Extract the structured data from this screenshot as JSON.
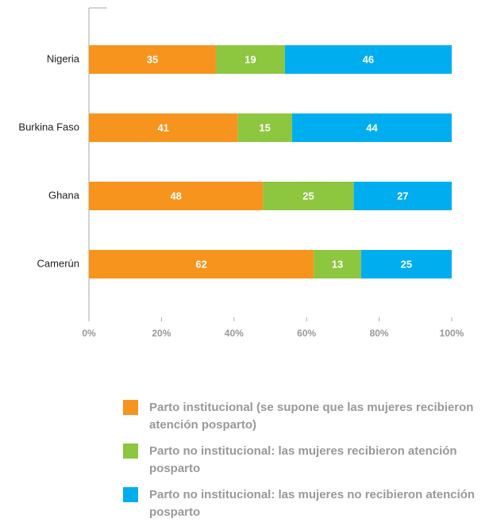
{
  "chart_data": {
    "type": "stacked-barh",
    "categories": [
      "Nigeria",
      "Burkina Faso",
      "Ghana",
      "Camerún"
    ],
    "series": [
      {
        "name": "Parto institucional (se supone que las mujeres recibieron atención posparto)",
        "color": "#f7941d",
        "values": [
          35,
          41,
          48,
          62
        ]
      },
      {
        "name": "Parto no institucional: las mujeres recibieron atención posparto",
        "color": "#8dc63f",
        "values": [
          19,
          15,
          25,
          13
        ]
      },
      {
        "name": "Parto no institucional: las mujeres no recibieron atención posparto",
        "color": "#00aeef",
        "values": [
          46,
          44,
          27,
          25
        ]
      }
    ],
    "xlim": [
      0,
      100
    ],
    "xticks": [
      {
        "value": 0,
        "label": "0%"
      },
      {
        "value": 20,
        "label": "20%"
      },
      {
        "value": 40,
        "label": "40%"
      },
      {
        "value": 60,
        "label": "60%"
      },
      {
        "value": 80,
        "label": "80%"
      },
      {
        "value": 100,
        "label": "100%"
      }
    ]
  }
}
